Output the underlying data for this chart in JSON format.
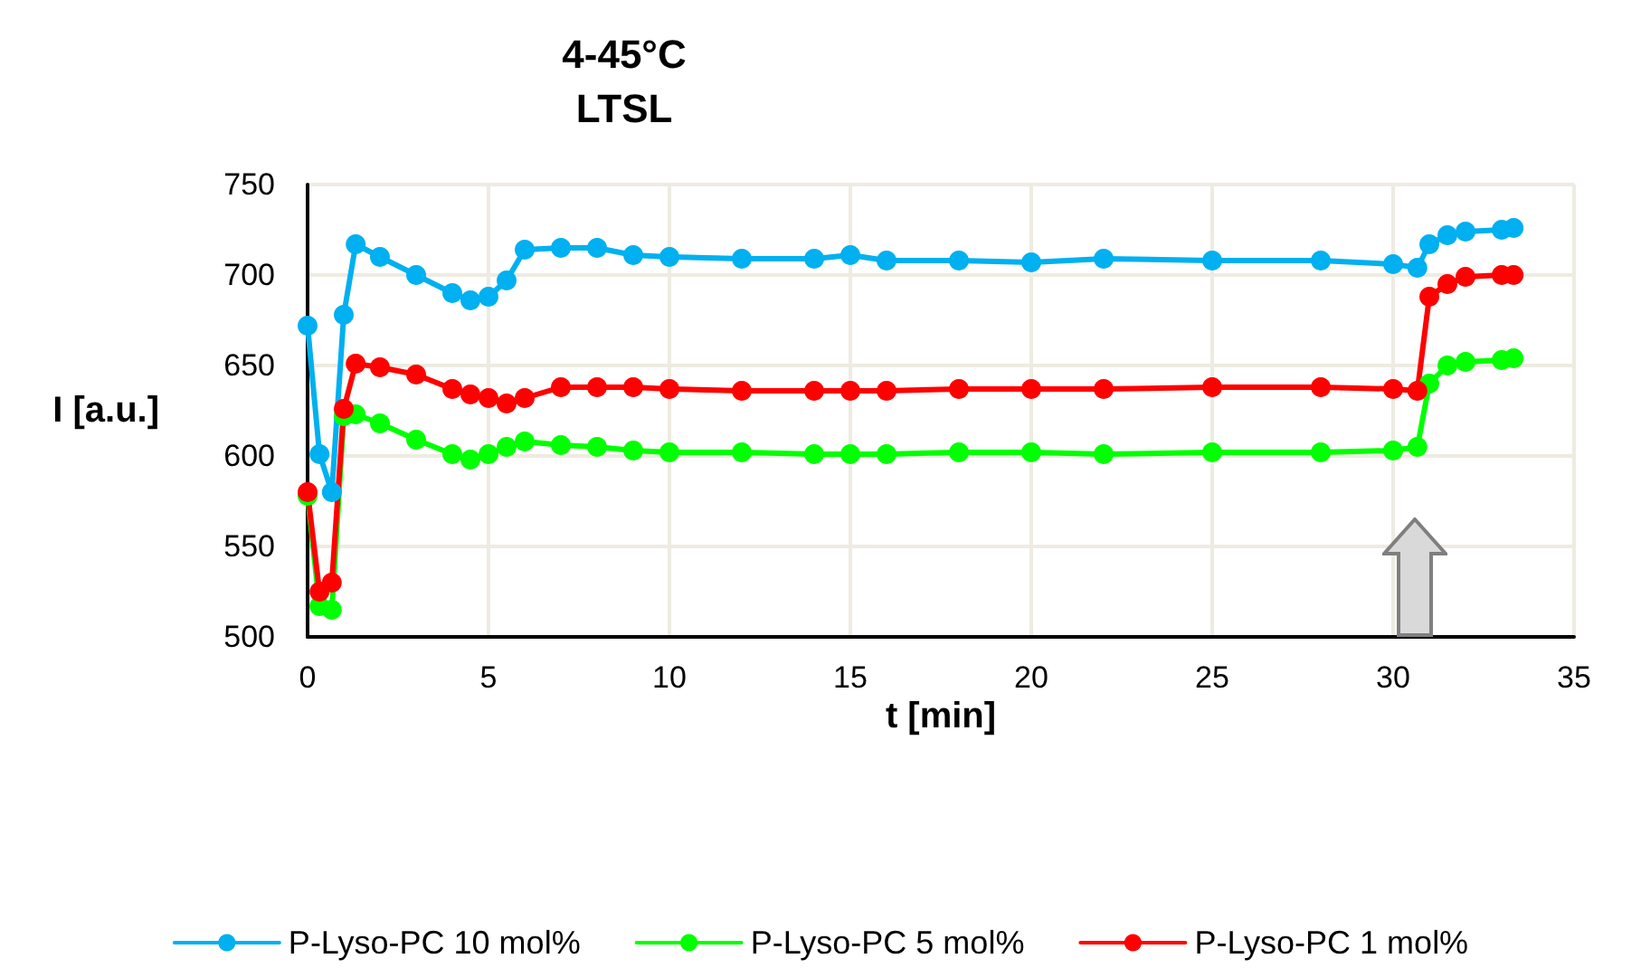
{
  "chart_data": {
    "type": "line",
    "title": "4-45°C\nLTSL",
    "xlabel": "t [min]",
    "ylabel": "I [a.u.]",
    "xlim": [
      0,
      35
    ],
    "xticks": [
      0,
      5,
      10,
      15,
      20,
      25,
      30,
      35
    ],
    "ylim": [
      500,
      750
    ],
    "yticks": [
      500,
      550,
      600,
      650,
      700,
      750
    ],
    "grid": true,
    "legend": "bottom",
    "marker": "circle",
    "line_style": "solid",
    "x": [
      0,
      0.33,
      0.67,
      1,
      1.33,
      2,
      3,
      4,
      4.5,
      5,
      5.5,
      6,
      7,
      8,
      9,
      10,
      12,
      14,
      15,
      16,
      18,
      20,
      22,
      25,
      28,
      30,
      30.67,
      31,
      31.5,
      32,
      33,
      33.33
    ],
    "series": [
      {
        "name": "P-Lyso-PC 10 mol%",
        "color": "#00b0f0",
        "values": [
          672,
          601,
          580,
          678,
          717,
          710,
          700,
          690,
          686,
          688,
          697,
          714,
          715,
          715,
          711,
          710,
          709,
          709,
          711,
          708,
          708,
          707,
          709,
          708,
          708,
          706,
          704,
          717,
          722,
          724,
          725,
          726
        ]
      },
      {
        "name": "P-Lyso-PC 5 mol%",
        "color": "#00ff00",
        "values": [
          578,
          517,
          515,
          622,
          623,
          618,
          609,
          601,
          598,
          601,
          605,
          608,
          606,
          605,
          603,
          602,
          602,
          601,
          601,
          601,
          602,
          602,
          601,
          602,
          602,
          603,
          605,
          640,
          650,
          652,
          653,
          654
        ]
      },
      {
        "name": "P-Lyso-PC 1 mol%",
        "color": "#ff0000",
        "values": [
          580,
          525,
          530,
          626,
          651,
          649,
          645,
          637,
          634,
          632,
          629,
          632,
          638,
          638,
          638,
          637,
          636,
          636,
          636,
          636,
          637,
          637,
          637,
          638,
          638,
          637,
          636,
          688,
          695,
          699,
          700,
          700
        ]
      }
    ]
  }
}
